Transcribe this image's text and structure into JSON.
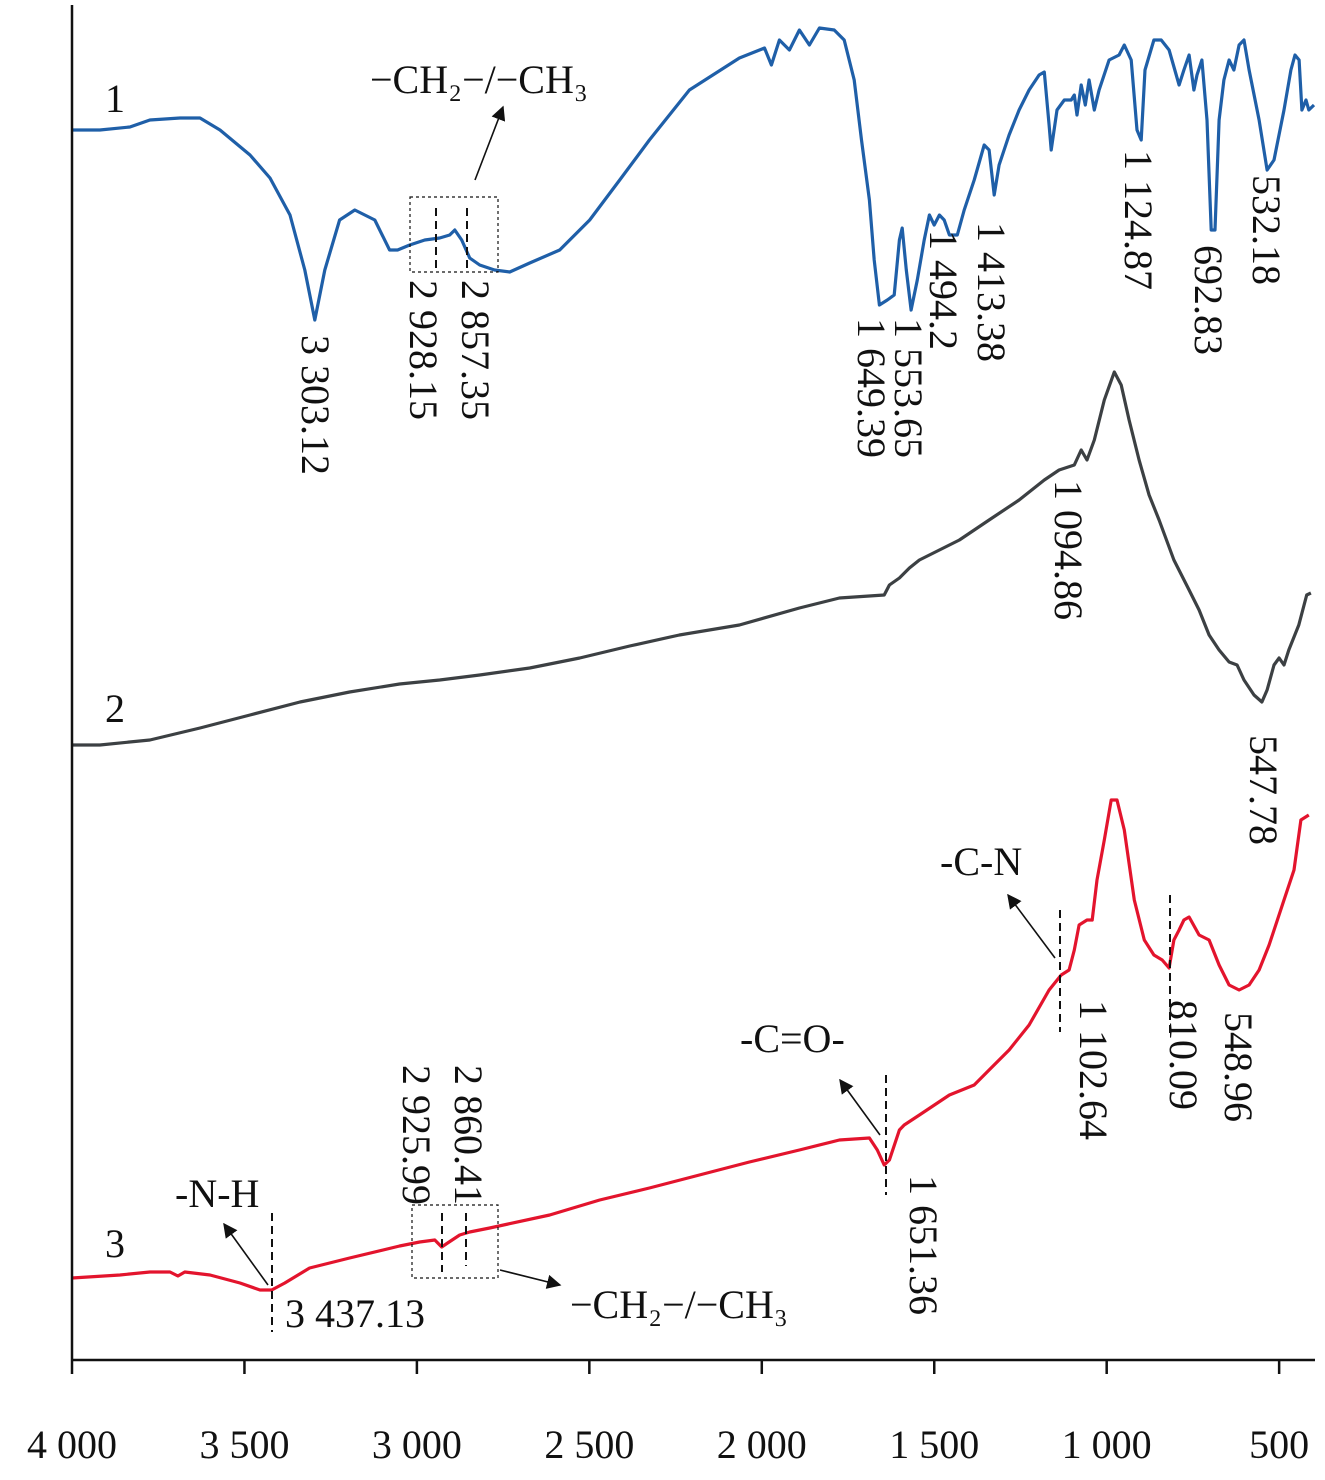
{
  "chart_data": {
    "type": "line",
    "xlim": [
      4000,
      396
    ],
    "ylim": [
      0,
      136
    ],
    "xticks": [
      {
        "value": 4000,
        "label": "4 000"
      },
      {
        "value": 3500,
        "label": "3 500"
      },
      {
        "value": 3000,
        "label": "3 000"
      },
      {
        "value": 2500,
        "label": "2 500"
      },
      {
        "value": 2000,
        "label": "2 000"
      },
      {
        "value": 1500,
        "label": "1 500"
      },
      {
        "value": 1000,
        "label": "1 000"
      },
      500
    ],
    "series": [
      {
        "name": "1",
        "color": "#1f5fa8",
        "x": [
          4000,
          3919,
          3832,
          3774,
          3687,
          3629,
          3571,
          3484,
          3426,
          3368,
          3325,
          3296,
          3267,
          3224,
          3180,
          3122,
          3079,
          3056,
          3021,
          2977,
          2934,
          2905,
          2890,
          2870,
          2847,
          2818,
          2775,
          2731,
          2673,
          2586,
          2499,
          2412,
          2326,
          2210,
          2065,
          1992,
          1972,
          1949,
          1920,
          1891,
          1862,
          1833,
          1790,
          1761,
          1732,
          1711,
          1688,
          1674,
          1659,
          1636,
          1616,
          1601,
          1593,
          1581,
          1567,
          1549,
          1529,
          1514,
          1500,
          1485,
          1471,
          1456,
          1433,
          1413,
          1384,
          1355,
          1341,
          1326,
          1312,
          1283,
          1254,
          1225,
          1196,
          1181,
          1167,
          1161,
          1144,
          1123,
          1103,
          1094,
          1086,
          1074,
          1062,
          1051,
          1036,
          1022,
          993,
          964,
          949,
          929,
          912,
          900,
          889,
          863,
          842,
          819,
          790,
          776,
          761,
          747,
          738,
          724,
          709,
          697,
          686,
          674,
          660,
          645,
          631,
          616,
          602,
          587,
          558,
          535,
          515,
          486,
          466,
          454,
          442,
          434,
          422,
          414,
          399
        ],
        "values": [
          123,
          123,
          123.3,
          124,
          124.2,
          124.2,
          123,
          120.5,
          118.2,
          114.5,
          109,
          104,
          109,
          114,
          115,
          114,
          111,
          111,
          111.5,
          112,
          112.2,
          112.5,
          113,
          112,
          110.2,
          109.5,
          109,
          108.8,
          109.7,
          111,
          114,
          118,
          122,
          127,
          130.2,
          131.2,
          129.5,
          132,
          131,
          133,
          131.5,
          133.2,
          133,
          132,
          128,
          122,
          116,
          110,
          105.5,
          106,
          106.5,
          112,
          113.2,
          109,
          105,
          108,
          112,
          114.5,
          113.5,
          114.5,
          114,
          112.5,
          112.5,
          115,
          118,
          121.5,
          121,
          116.5,
          119.5,
          122.5,
          125,
          127,
          128.5,
          128.8,
          123.5,
          121,
          125,
          126,
          126,
          126.5,
          124.5,
          127.5,
          125.5,
          128,
          125,
          127,
          130,
          130.5,
          131.5,
          130,
          123,
          122,
          129,
          132,
          132,
          131,
          127.5,
          129,
          130.5,
          127,
          128.5,
          130,
          124,
          113,
          113,
          124,
          128,
          130,
          129,
          131.5,
          132,
          129,
          124,
          119,
          120,
          125,
          129,
          130.5,
          130,
          125,
          126,
          125,
          125.5
        ]
      },
      {
        "name": "2",
        "color": "#3c4043",
        "x": [
          4000,
          3919,
          3774,
          3629,
          3484,
          3339,
          3195,
          3050,
          2934,
          2818,
          2673,
          2528,
          2383,
          2239,
          2065,
          1891,
          1775,
          1645,
          1630,
          1601,
          1572,
          1543,
          1485,
          1427,
          1341,
          1254,
          1181,
          1138,
          1094,
          1074,
          1057,
          1036,
          1007,
          978,
          958,
          935,
          906,
          877,
          848,
          805,
          761,
          732,
          703,
          674,
          645,
          622,
          602,
          573,
          550,
          535,
          515,
          500,
          486,
          472,
          443,
          420,
          408
        ],
        "values": [
          61.5,
          61.5,
          62,
          63.2,
          64.5,
          65.8,
          66.8,
          67.6,
          68,
          68.5,
          69.2,
          70.2,
          71.4,
          72.5,
          73.5,
          75.2,
          76.2,
          76.5,
          77.5,
          78.2,
          79.2,
          80,
          81,
          82,
          84,
          86,
          88,
          89,
          89.5,
          91,
          90,
          92,
          96,
          98.8,
          97.5,
          94,
          90,
          86.5,
          84,
          80,
          77,
          75,
          72.5,
          71,
          69.8,
          69.5,
          68,
          66.5,
          65.8,
          67,
          69.5,
          70.2,
          69.5,
          71,
          73.5,
          76.5,
          76.7
        ]
      },
      {
        "name": "3",
        "color": "#e3142d",
        "x": [
          4000,
          3861,
          3774,
          3716,
          3693,
          3673,
          3600,
          3513,
          3455,
          3421,
          3383,
          3311,
          3195,
          3050,
          2992,
          2948,
          2928,
          2911,
          2876,
          2847,
          2789,
          2615,
          2470,
          2326,
          2181,
          2036,
          1891,
          1775,
          1688,
          1665,
          1645,
          1630,
          1601,
          1587,
          1543,
          1456,
          1384,
          1341,
          1283,
          1225,
          1167,
          1132,
          1109,
          1094,
          1080,
          1057,
          1042,
          1028,
          1007,
          987,
          970,
          949,
          920,
          891,
          863,
          839,
          819,
          805,
          790,
          776,
          761,
          732,
          703,
          674,
          645,
          616,
          587,
          558,
          529,
          486,
          457,
          437,
          414
        ],
        "values": [
          8.2,
          8.5,
          8.8,
          8.8,
          8.4,
          8.8,
          8.5,
          7.7,
          7,
          7,
          7.7,
          9.2,
          10.2,
          11.4,
          11.8,
          12,
          11.3,
          11.7,
          12.5,
          12.8,
          13.2,
          14.5,
          16,
          17.2,
          18.5,
          19.8,
          21,
          22,
          22.2,
          21,
          19.5,
          20,
          23,
          23.5,
          24.5,
          26.5,
          27.5,
          29,
          31,
          33.5,
          37,
          38.5,
          39,
          41,
          43.5,
          44,
          44,
          48,
          52,
          56,
          56,
          53,
          46,
          42,
          40.5,
          40,
          39.2,
          42,
          43,
          44,
          44.3,
          42.5,
          42,
          39.5,
          37.5,
          37,
          37.5,
          39,
          41.5,
          46,
          49,
          54,
          54.5
        ]
      }
    ],
    "annotations": [
      "3 303.12",
      "2 928.15",
      "2 857.35",
      "1 649.39",
      "1 553.65",
      "1 494.2",
      "1 413.38",
      "1 124.87",
      "692.83",
      "532.18",
      "1 094.86",
      "547.78",
      "1 102.64",
      "810.09",
      "548.96",
      "1 651.36",
      "2 925.99",
      "2 860.41",
      "3 437.13",
      "−CH₂−/−CH₃",
      "−CH₂−/−CH₃",
      "-C-N",
      "-C=O-",
      "-N-H"
    ]
  }
}
